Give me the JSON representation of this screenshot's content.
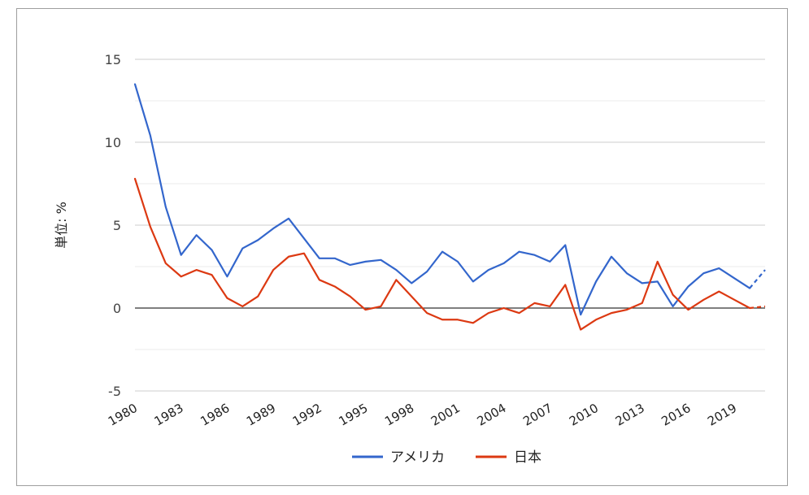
{
  "chart_data": {
    "type": "line",
    "title": "",
    "xlabel": "",
    "ylabel": "単位: %",
    "ylim": [
      -5,
      15
    ],
    "yticks": [
      15,
      10,
      5,
      0,
      -5
    ],
    "grid": true,
    "legend_position": "bottom",
    "x": [
      1980,
      1981,
      1982,
      1983,
      1984,
      1985,
      1986,
      1987,
      1988,
      1989,
      1990,
      1991,
      1992,
      1993,
      1994,
      1995,
      1996,
      1997,
      1998,
      1999,
      2000,
      2001,
      2002,
      2003,
      2004,
      2005,
      2006,
      2007,
      2008,
      2009,
      2010,
      2011,
      2012,
      2013,
      2014,
      2015,
      2016,
      2017,
      2018,
      2019,
      2020,
      2021
    ],
    "xtick_labels": [
      "1980",
      "1983",
      "1986",
      "1989",
      "1992",
      "1995",
      "1998",
      "2001",
      "2004",
      "2007",
      "2010",
      "2013",
      "2016",
      "2019"
    ],
    "xtick_years": [
      1980,
      1983,
      1986,
      1989,
      1992,
      1995,
      1998,
      2001,
      2004,
      2007,
      2010,
      2013,
      2016,
      2019
    ],
    "series": [
      {
        "name": "アメリカ",
        "color": "#3366cc",
        "dashed_last_segment": true,
        "values": [
          13.5,
          10.4,
          6.1,
          3.2,
          4.4,
          3.5,
          1.9,
          3.6,
          4.1,
          4.8,
          5.4,
          4.2,
          3.0,
          3.0,
          2.6,
          2.8,
          2.9,
          2.3,
          1.5,
          2.2,
          3.4,
          2.8,
          1.6,
          2.3,
          2.7,
          3.4,
          3.2,
          2.8,
          3.8,
          -0.4,
          1.6,
          3.1,
          2.1,
          1.5,
          1.6,
          0.1,
          1.3,
          2.1,
          2.4,
          1.8,
          1.2,
          2.3
        ]
      },
      {
        "name": "日本",
        "color": "#dc3912",
        "dashed_last_segment": true,
        "values": [
          7.8,
          4.9,
          2.7,
          1.9,
          2.3,
          2.0,
          0.6,
          0.1,
          0.7,
          2.3,
          3.1,
          3.3,
          1.7,
          1.3,
          0.7,
          -0.1,
          0.1,
          1.7,
          0.7,
          -0.3,
          -0.7,
          -0.7,
          -0.9,
          -0.3,
          0.0,
          -0.3,
          0.3,
          0.1,
          1.4,
          -1.3,
          -0.7,
          -0.3,
          -0.1,
          0.3,
          2.8,
          0.8,
          -0.1,
          0.5,
          1.0,
          0.5,
          0.0,
          0.1
        ]
      }
    ]
  }
}
